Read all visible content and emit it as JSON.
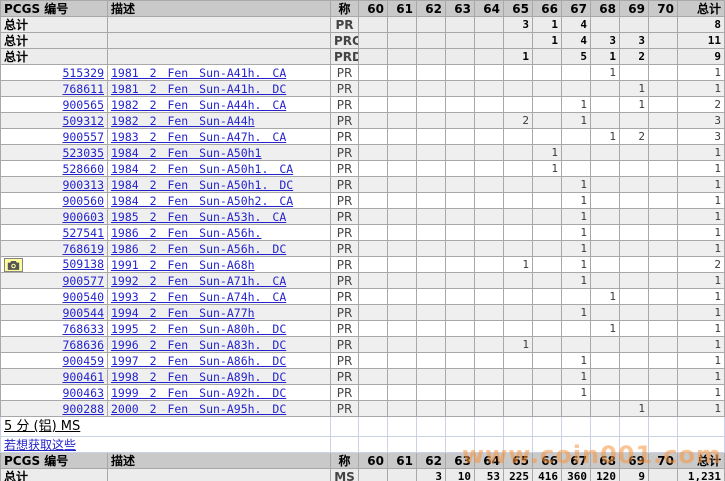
{
  "watermark": "www.coin001.com",
  "colors": {
    "link_blue": "#2424cc",
    "header_bg": "#c9c9c9",
    "row_alt": "#efefef",
    "grid": "#a8a8a8",
    "grid_light": "#c9d2e6",
    "camera_bg": "#ffff99",
    "watermark_orange": "#f6943e"
  },
  "table": {
    "headers": {
      "pcgs": "PCGS 编号",
      "desc": "描述",
      "designation": "称",
      "grades": [
        "60",
        "61",
        "62",
        "63",
        "64",
        "65",
        "66",
        "67",
        "68",
        "69",
        "70"
      ],
      "total": "总计"
    },
    "pr_totals": [
      {
        "label": "总计",
        "designation": "PR",
        "cells": [
          "",
          "",
          "",
          "",
          "",
          "3",
          "1",
          "4",
          "",
          "",
          ""
        ],
        "total": "8"
      },
      {
        "label": "总计",
        "designation": "PRC",
        "cells": [
          "",
          "",
          "",
          "",
          "",
          "",
          "1",
          "4",
          "3",
          "3",
          ""
        ],
        "total": "11"
      },
      {
        "label": "总计",
        "designation": "PRD",
        "cells": [
          "",
          "",
          "",
          "",
          "",
          "1",
          "",
          "5",
          "1",
          "2",
          ""
        ],
        "total": "9"
      }
    ],
    "coin_rows": [
      {
        "pcgs": "515329",
        "desc": "1981 2 Fen Sun-A41h. CA",
        "designation": "PR",
        "camera": false,
        "cells": [
          "",
          "",
          "",
          "",
          "",
          "",
          "",
          "",
          "1",
          "",
          ""
        ],
        "total": "1"
      },
      {
        "pcgs": "768611",
        "desc": "1981 2 Fen Sun-A41h. DC",
        "designation": "PR",
        "camera": false,
        "cells": [
          "",
          "",
          "",
          "",
          "",
          "",
          "",
          "",
          "",
          "1",
          ""
        ],
        "total": "1"
      },
      {
        "pcgs": "900565",
        "desc": "1982 2 Fen Sun-A44h. CA",
        "designation": "PR",
        "camera": false,
        "cells": [
          "",
          "",
          "",
          "",
          "",
          "",
          "",
          "1",
          "",
          "1",
          ""
        ],
        "total": "2"
      },
      {
        "pcgs": "509312",
        "desc": "1982 2 Fen Sun-A44h",
        "designation": "PR",
        "camera": false,
        "cells": [
          "",
          "",
          "",
          "",
          "",
          "2",
          "",
          "1",
          "",
          "",
          ""
        ],
        "total": "3"
      },
      {
        "pcgs": "900557",
        "desc": "1983 2 Fen Sun-A47h. CA",
        "designation": "PR",
        "camera": false,
        "cells": [
          "",
          "",
          "",
          "",
          "",
          "",
          "",
          "",
          "1",
          "2",
          ""
        ],
        "total": "3"
      },
      {
        "pcgs": "523035",
        "desc": "1984 2 Fen Sun-A50h1",
        "designation": "PR",
        "camera": false,
        "cells": [
          "",
          "",
          "",
          "",
          "",
          "",
          "1",
          "",
          "",
          "",
          ""
        ],
        "total": "1"
      },
      {
        "pcgs": "528660",
        "desc": "1984 2 Fen Sun-A50h1. CA",
        "designation": "PR",
        "camera": false,
        "cells": [
          "",
          "",
          "",
          "",
          "",
          "",
          "1",
          "",
          "",
          "",
          ""
        ],
        "total": "1"
      },
      {
        "pcgs": "900313",
        "desc": "1984 2 Fen Sun-A50h1. DC",
        "designation": "PR",
        "camera": false,
        "cells": [
          "",
          "",
          "",
          "",
          "",
          "",
          "",
          "1",
          "",
          "",
          ""
        ],
        "total": "1"
      },
      {
        "pcgs": "900560",
        "desc": "1984 2 Fen Sun-A50h2. CA",
        "designation": "PR",
        "camera": false,
        "cells": [
          "",
          "",
          "",
          "",
          "",
          "",
          "",
          "1",
          "",
          "",
          ""
        ],
        "total": "1"
      },
      {
        "pcgs": "900603",
        "desc": "1985 2 Fen Sun-A53h. CA",
        "designation": "PR",
        "camera": false,
        "cells": [
          "",
          "",
          "",
          "",
          "",
          "",
          "",
          "1",
          "",
          "",
          ""
        ],
        "total": "1"
      },
      {
        "pcgs": "527541",
        "desc": "1986 2 Fen Sun-A56h.",
        "designation": "PR",
        "camera": false,
        "cells": [
          "",
          "",
          "",
          "",
          "",
          "",
          "",
          "1",
          "",
          "",
          ""
        ],
        "total": "1"
      },
      {
        "pcgs": "768619",
        "desc": "1986 2 Fen Sun-A56h. DC",
        "designation": "PR",
        "camera": false,
        "cells": [
          "",
          "",
          "",
          "",
          "",
          "",
          "",
          "1",
          "",
          "",
          ""
        ],
        "total": "1"
      },
      {
        "pcgs": "509138",
        "desc": "1991 2 Fen Sun-A68h",
        "designation": "PR",
        "camera": true,
        "cells": [
          "",
          "",
          "",
          "",
          "",
          "1",
          "",
          "1",
          "",
          "",
          ""
        ],
        "total": "2"
      },
      {
        "pcgs": "900577",
        "desc": "1992 2 Fen Sun-A71h. CA",
        "designation": "PR",
        "camera": false,
        "cells": [
          "",
          "",
          "",
          "",
          "",
          "",
          "",
          "1",
          "",
          "",
          ""
        ],
        "total": "1"
      },
      {
        "pcgs": "900540",
        "desc": "1993 2 Fen Sun-A74h. CA",
        "designation": "PR",
        "camera": false,
        "cells": [
          "",
          "",
          "",
          "",
          "",
          "",
          "",
          "",
          "1",
          "",
          ""
        ],
        "total": "1"
      },
      {
        "pcgs": "900544",
        "desc": "1994 2 Fen Sun-A77h",
        "designation": "PR",
        "camera": false,
        "cells": [
          "",
          "",
          "",
          "",
          "",
          "",
          "",
          "1",
          "",
          "",
          ""
        ],
        "total": "1"
      },
      {
        "pcgs": "768633",
        "desc": "1995 2 Fen Sun-A80h. DC",
        "designation": "PR",
        "camera": false,
        "cells": [
          "",
          "",
          "",
          "",
          "",
          "",
          "",
          "",
          "1",
          "",
          ""
        ],
        "total": "1"
      },
      {
        "pcgs": "768636",
        "desc": "1996 2 Fen Sun-A83h. DC",
        "designation": "PR",
        "camera": false,
        "cells": [
          "",
          "",
          "",
          "",
          "",
          "1",
          "",
          "",
          "",
          "",
          ""
        ],
        "total": "1"
      },
      {
        "pcgs": "900459",
        "desc": "1997 2 Fen Sun-A86h. DC",
        "designation": "PR",
        "camera": false,
        "cells": [
          "",
          "",
          "",
          "",
          "",
          "",
          "",
          "1",
          "",
          "",
          ""
        ],
        "total": "1"
      },
      {
        "pcgs": "900461",
        "desc": "1998 2 Fen Sun-A89h. DC",
        "designation": "PR",
        "camera": false,
        "cells": [
          "",
          "",
          "",
          "",
          "",
          "",
          "",
          "1",
          "",
          "",
          ""
        ],
        "total": "1"
      },
      {
        "pcgs": "900463",
        "desc": "1999 2 Fen Sun-A92h. DC",
        "designation": "PR",
        "camera": false,
        "cells": [
          "",
          "",
          "",
          "",
          "",
          "",
          "",
          "1",
          "",
          "",
          ""
        ],
        "total": "1"
      },
      {
        "pcgs": "900288",
        "desc": "2000 2 Fen Sun-A95h. DC",
        "designation": "PR",
        "camera": false,
        "cells": [
          "",
          "",
          "",
          "",
          "",
          "",
          "",
          "",
          "",
          "1",
          ""
        ],
        "total": "1"
      }
    ],
    "ms_section": {
      "title": "5 分 (铝) MS",
      "link_text": "若想获取这些",
      "totals": {
        "label": "总计",
        "designation": "MS",
        "cells": [
          "",
          "",
          "3",
          "10",
          "53",
          "225",
          "416",
          "360",
          "120",
          "9",
          ""
        ],
        "total": "1,231"
      }
    }
  }
}
